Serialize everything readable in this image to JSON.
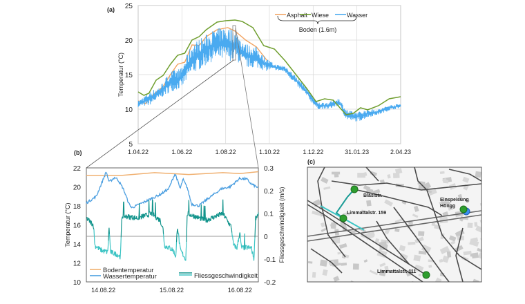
{
  "panel_labels": {
    "a": "(a)",
    "b": "(b)",
    "c": "(c)"
  },
  "chart_data": [
    {
      "type": "line",
      "panel": "(a)",
      "ylabel": "Temperatur (°C)",
      "ylim": [
        5,
        25
      ],
      "yticks": [
        5,
        10,
        15,
        20,
        25
      ],
      "xlim": [
        "2022-04-01",
        "2023-04-02"
      ],
      "xticks": [
        {
          "date": "2022-04-01",
          "label": "1.04.22"
        },
        {
          "date": "2022-06-01",
          "label": "1.06.22"
        },
        {
          "date": "2022-08-01",
          "label": "1.08.22"
        },
        {
          "date": "2022-10-01",
          "label": "1.10.22"
        },
        {
          "date": "2022-12-01",
          "label": "1.12.22"
        },
        {
          "date": "2023-01-31",
          "label": "31.01.23"
        },
        {
          "date": "2023-04-02",
          "label": "2.04.23"
        }
      ],
      "grid": true,
      "legend": {
        "position": "top-right",
        "group_label": "Boden (1.6m)"
      },
      "series": [
        {
          "name": "Asphalt",
          "color": "#f2a462",
          "points": [
            [
              "2022-04-01",
              11.2
            ],
            [
              "2022-04-11",
              10.8
            ],
            [
              "2022-04-21",
              12
            ],
            [
              "2022-05-06",
              13.3
            ],
            [
              "2022-05-16",
              15
            ],
            [
              "2022-05-26",
              16.5
            ],
            [
              "2022-06-05",
              16.8
            ],
            [
              "2022-06-15",
              19.3
            ],
            [
              "2022-06-25",
              19.2
            ],
            [
              "2022-07-05",
              20.5
            ],
            [
              "2022-07-20",
              21.5
            ],
            [
              "2022-08-04",
              21.8
            ],
            [
              "2022-08-14",
              21.3
            ],
            [
              "2022-08-29",
              20
            ],
            [
              "2022-09-13",
              19
            ],
            [
              "2022-09-28",
              17
            ]
          ]
        },
        {
          "name": "Wiese",
          "color": "#6f9e2e",
          "points": [
            [
              "2022-04-01",
              12.5
            ],
            [
              "2022-04-09",
              12
            ],
            [
              "2022-04-16",
              12.3
            ],
            [
              "2022-04-26",
              14.2
            ],
            [
              "2022-05-06",
              14.9
            ],
            [
              "2022-05-16",
              16.5
            ],
            [
              "2022-05-26",
              17.8
            ],
            [
              "2022-06-05",
              18.1
            ],
            [
              "2022-06-15",
              20
            ],
            [
              "2022-06-25",
              20.5
            ],
            [
              "2022-07-05",
              21.5
            ],
            [
              "2022-07-20",
              22.6
            ],
            [
              "2022-08-01",
              22.8
            ],
            [
              "2022-08-14",
              22.9
            ],
            [
              "2022-08-24",
              22.7
            ],
            [
              "2022-09-08",
              21.8
            ],
            [
              "2022-09-23",
              19.2
            ],
            [
              "2022-10-08",
              18.7
            ],
            [
              "2022-10-23",
              17
            ],
            [
              "2022-11-07",
              15
            ],
            [
              "2022-11-22",
              13
            ],
            [
              "2022-12-05",
              11.1
            ],
            [
              "2022-12-17",
              11.5
            ],
            [
              "2022-12-29",
              11.3
            ],
            [
              "2023-01-09",
              10
            ],
            [
              "2023-01-16",
              9.2
            ],
            [
              "2023-01-26",
              9.4
            ],
            [
              "2023-02-05",
              10.2
            ],
            [
              "2023-02-15",
              9.9
            ],
            [
              "2023-03-02",
              10.5
            ],
            [
              "2023-03-17",
              11.5
            ],
            [
              "2023-04-02",
              11.8
            ]
          ]
        },
        {
          "name": "Wasser",
          "color": "#4aaaf0",
          "range_points": [
            [
              "2022-04-01",
              10.3,
              11.2
            ],
            [
              "2022-04-16",
              10.5,
              12.5
            ],
            [
              "2022-05-01",
              11.5,
              13.3
            ],
            [
              "2022-05-16",
              12.5,
              15.5
            ],
            [
              "2022-05-31",
              13,
              16
            ],
            [
              "2022-06-15",
              15,
              19.5
            ],
            [
              "2022-06-30",
              16,
              20.5
            ],
            [
              "2022-07-15",
              17,
              21.5
            ],
            [
              "2022-07-30",
              17,
              22
            ],
            [
              "2022-08-14",
              17,
              21.5
            ],
            [
              "2022-08-29",
              16,
              19.5
            ],
            [
              "2022-09-13",
              16,
              19
            ],
            [
              "2022-09-26",
              15.5,
              17.5
            ],
            [
              "2022-10-08",
              15.7,
              16.5
            ],
            [
              "2022-10-23",
              15.3,
              16.3
            ],
            [
              "2022-11-07",
              13.5,
              14.8
            ],
            [
              "2022-11-22",
              11.8,
              13.2
            ],
            [
              "2022-12-07",
              10,
              11
            ],
            [
              "2022-12-22",
              10,
              11
            ],
            [
              "2023-01-06",
              10.5,
              11.6
            ],
            [
              "2023-01-16",
              8.5,
              10
            ],
            [
              "2023-01-26",
              8.2,
              9.6
            ],
            [
              "2023-02-05",
              8.3,
              9.7
            ],
            [
              "2023-02-15",
              8.8,
              10
            ],
            [
              "2023-03-02",
              9.2,
              10
            ],
            [
              "2023-03-17",
              9.8,
              10.6
            ],
            [
              "2023-04-02",
              10.2,
              10.8
            ]
          ]
        }
      ]
    },
    {
      "type": "line",
      "panel": "(b)",
      "ylabel": "Temperatur (°C)",
      "ylim": [
        10,
        22
      ],
      "yticks": [
        10,
        12,
        14,
        16,
        18,
        20,
        22
      ],
      "y2label": "Fliessgeschwindigkeit (m/s)",
      "y2lim": [
        -0.2,
        0.3
      ],
      "y2ticks": [
        -0.2,
        -0.1,
        0,
        0.1,
        0.2,
        0.3
      ],
      "xlim": [
        "2022-08-13T18:00",
        "2022-08-16T06:30"
      ],
      "xticks": [
        {
          "date": "2022-08-14T00:00",
          "label": "14.08.22"
        },
        {
          "date": "2022-08-15T00:00",
          "label": "15.08.22"
        },
        {
          "date": "2022-08-16T00:00",
          "label": "16.08.22"
        }
      ],
      "legend": {
        "position": "bottom"
      },
      "series": [
        {
          "name": "Bodentemperatur",
          "axis": "left",
          "color": "#f0b070",
          "points": [
            [
              "2022-08-13T18:00",
              21.2
            ],
            [
              "2022-08-14T06:00",
              21.2
            ],
            [
              "2022-08-14T18:00",
              21.5
            ],
            [
              "2022-08-15T06:00",
              21.3
            ],
            [
              "2022-08-15T18:00",
              21.5
            ],
            [
              "2022-08-16T00:00",
              21.4
            ],
            [
              "2022-08-16T06:30",
              21.6
            ]
          ]
        },
        {
          "name": "Wassertemperatur",
          "axis": "left",
          "color": "#4a9ee0",
          "points": [
            [
              "2022-08-13T18:00",
              18.3
            ],
            [
              "2022-08-13T21:30",
              19
            ],
            [
              "2022-08-14T01:00",
              21.6
            ],
            [
              "2022-08-14T02:00",
              20.5
            ],
            [
              "2022-08-14T04:00",
              21
            ],
            [
              "2022-08-14T05:00",
              20.8
            ],
            [
              "2022-08-14T07:00",
              19.8
            ],
            [
              "2022-08-14T09:00",
              18.2
            ],
            [
              "2022-08-14T10:00",
              17.8
            ],
            [
              "2022-08-14T15:00",
              18.5
            ],
            [
              "2022-08-14T20:00",
              19.2
            ],
            [
              "2022-08-14T23:00",
              19.8
            ],
            [
              "2022-08-15T01:00",
              21.3
            ],
            [
              "2022-08-15T01:30",
              21.2
            ],
            [
              "2022-08-15T03:00",
              19.8
            ],
            [
              "2022-08-15T04:00",
              20.8
            ],
            [
              "2022-08-15T05:30",
              19.9
            ],
            [
              "2022-08-15T07:00",
              18.2
            ],
            [
              "2022-08-15T09:30",
              18
            ],
            [
              "2022-08-15T12:30",
              18.7
            ],
            [
              "2022-08-15T17:30",
              19.8
            ],
            [
              "2022-08-15T20:30",
              20
            ],
            [
              "2022-08-16T00:00",
              20.9
            ],
            [
              "2022-08-16T02:30",
              20.8
            ],
            [
              "2022-08-16T04:00",
              20.3
            ],
            [
              "2022-08-16T06:30",
              19.9
            ]
          ]
        },
        {
          "name": "Fliessgeschwindigkeit",
          "axis": "right",
          "color": "#12948c",
          "color_negative": "#3cc4c4",
          "points": [
            [
              "2022-08-13T18:00",
              0.08
            ],
            [
              "2022-08-13T20:30",
              0.05
            ],
            [
              "2022-08-13T21:00",
              -0.04
            ],
            [
              "2022-08-13T23:00",
              -0.06
            ],
            [
              "2022-08-14T01:30",
              -0.07
            ],
            [
              "2022-08-14T02:00",
              0.04
            ],
            [
              "2022-08-14T02:30",
              -0.07
            ],
            [
              "2022-08-14T05:00",
              -0.08
            ],
            [
              "2022-08-14T06:00",
              -0.09
            ],
            [
              "2022-08-14T06:30",
              0.09
            ],
            [
              "2022-08-14T12:00",
              0.08
            ],
            [
              "2022-08-14T17:00",
              0.1
            ],
            [
              "2022-08-14T20:00",
              0.07
            ],
            [
              "2022-08-14T21:00",
              0.03
            ],
            [
              "2022-08-14T21:30",
              -0.04
            ],
            [
              "2022-08-15T00:30",
              -0.06
            ],
            [
              "2022-08-15T01:30",
              -0.09
            ],
            [
              "2022-08-15T02:00",
              0.05
            ],
            [
              "2022-08-15T03:00",
              -0.06
            ],
            [
              "2022-08-15T05:00",
              -0.1
            ],
            [
              "2022-08-15T05:30",
              0.1
            ],
            [
              "2022-08-15T12:00",
              0.07
            ],
            [
              "2022-08-15T18:00",
              0.1
            ],
            [
              "2022-08-15T21:00",
              0.04
            ],
            [
              "2022-08-15T21:45",
              -0.04
            ],
            [
              "2022-08-15T23:00",
              -0.05
            ],
            [
              "2022-08-16T00:00",
              0.02
            ],
            [
              "2022-08-16T00:30",
              -0.05
            ],
            [
              "2022-08-16T04:00",
              -0.05
            ],
            [
              "2022-08-16T05:00",
              -0.1
            ],
            [
              "2022-08-16T05:30",
              0.08
            ],
            [
              "2022-08-16T06:30",
              0.1
            ]
          ]
        }
      ]
    }
  ],
  "map": {
    "panel": "(c)",
    "stations": [
      {
        "name": "Bläsistr.",
        "color": "#2e9e2e"
      },
      {
        "name": "Limmattalstr. 159",
        "color": "#2e9e2e"
      },
      {
        "name": "Limmattalstr. 111",
        "color": "#2e9e2e"
      },
      {
        "name": "Einspeisung",
        "name2": "Höngg",
        "color": "#2e9e2e",
        "marker2_color": "#3a8ef0"
      }
    ],
    "pipe_color": "#1a9c96"
  }
}
